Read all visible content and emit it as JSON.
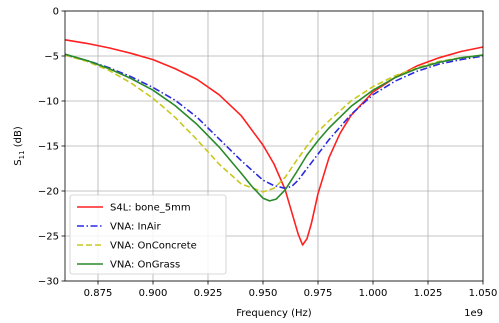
{
  "chart_data": {
    "type": "line",
    "xlabel": "Frequency (Hz)",
    "ylabel_main": "S",
    "ylabel_sub": "11",
    "ylabel_suffix": " (dB)",
    "x_offset_label": "1e9",
    "xlim": [
      0.86,
      1.05
    ],
    "ylim": [
      -30,
      0
    ],
    "x_ticks": [
      0.875,
      0.9,
      0.925,
      0.95,
      0.975,
      1.0,
      1.025,
      1.05
    ],
    "x_tick_labels": [
      "0.875",
      "0.900",
      "0.925",
      "0.950",
      "0.975",
      "1.000",
      "1.025",
      "1.050"
    ],
    "y_ticks": [
      0,
      -5,
      -10,
      -15,
      -20,
      -25,
      -30
    ],
    "y_tick_labels": [
      "0",
      "−5",
      "−10",
      "−15",
      "−20",
      "−25",
      "−30"
    ],
    "grid": true,
    "legend_position": "lower-left",
    "series": [
      {
        "name": "S4L: bone_5mm",
        "color": "#ff2020",
        "dash": "solid",
        "x": [
          0.86,
          0.87,
          0.88,
          0.89,
          0.9,
          0.91,
          0.92,
          0.93,
          0.94,
          0.95,
          0.955,
          0.96,
          0.963,
          0.966,
          0.968,
          0.97,
          0.972,
          0.975,
          0.98,
          0.985,
          0.99,
          1.0,
          1.01,
          1.02,
          1.03,
          1.04,
          1.05
        ],
        "y": [
          -3.2,
          -3.6,
          -4.1,
          -4.7,
          -5.4,
          -6.4,
          -7.6,
          -9.3,
          -11.6,
          -14.9,
          -17.0,
          -19.8,
          -22.3,
          -24.8,
          -26.0,
          -25.3,
          -23.6,
          -20.3,
          -16.3,
          -13.6,
          -11.6,
          -9.0,
          -7.4,
          -6.1,
          -5.2,
          -4.5,
          -4.0
        ]
      },
      {
        "name": "VNA: InAir",
        "color": "#2a2ae0",
        "dash": "dashdot",
        "x": [
          0.86,
          0.87,
          0.88,
          0.89,
          0.9,
          0.91,
          0.92,
          0.93,
          0.94,
          0.95,
          0.955,
          0.96,
          0.963,
          0.966,
          0.97,
          0.975,
          0.98,
          0.99,
          1.0,
          1.01,
          1.02,
          1.03,
          1.04,
          1.05
        ],
        "y": [
          -4.9,
          -5.5,
          -6.3,
          -7.3,
          -8.5,
          -9.9,
          -11.8,
          -14.2,
          -16.6,
          -18.8,
          -19.4,
          -19.7,
          -19.5,
          -18.8,
          -17.5,
          -15.9,
          -14.3,
          -11.5,
          -9.3,
          -7.8,
          -6.7,
          -5.9,
          -5.4,
          -5.0
        ]
      },
      {
        "name": "VNA: OnConcrete",
        "color": "#c8c820",
        "dash": "dashed",
        "x": [
          0.86,
          0.87,
          0.88,
          0.89,
          0.9,
          0.91,
          0.92,
          0.93,
          0.94,
          0.95,
          0.955,
          0.96,
          0.965,
          0.97,
          0.975,
          0.98,
          0.99,
          1.0,
          1.01,
          1.02,
          1.03,
          1.04,
          1.05
        ],
        "y": [
          -4.9,
          -5.6,
          -6.6,
          -8.0,
          -9.7,
          -11.8,
          -14.3,
          -17.0,
          -19.2,
          -20.1,
          -19.7,
          -18.5,
          -16.7,
          -15.0,
          -13.4,
          -12.2,
          -10.0,
          -8.4,
          -7.2,
          -6.3,
          -5.6,
          -5.2,
          -4.9
        ]
      },
      {
        "name": "VNA: OnGrass",
        "color": "#2a8a2a",
        "dash": "solid",
        "x": [
          0.86,
          0.87,
          0.88,
          0.89,
          0.9,
          0.91,
          0.92,
          0.93,
          0.94,
          0.945,
          0.95,
          0.953,
          0.956,
          0.96,
          0.965,
          0.97,
          0.975,
          0.98,
          0.99,
          1.0,
          1.01,
          1.02,
          1.03,
          1.04,
          1.05
        ],
        "y": [
          -4.8,
          -5.5,
          -6.4,
          -7.5,
          -8.8,
          -10.5,
          -12.6,
          -15.1,
          -18.0,
          -19.5,
          -20.8,
          -21.1,
          -20.9,
          -19.9,
          -18.0,
          -16.0,
          -14.4,
          -13.0,
          -10.6,
          -8.8,
          -7.4,
          -6.4,
          -5.7,
          -5.2,
          -4.9
        ]
      }
    ]
  }
}
